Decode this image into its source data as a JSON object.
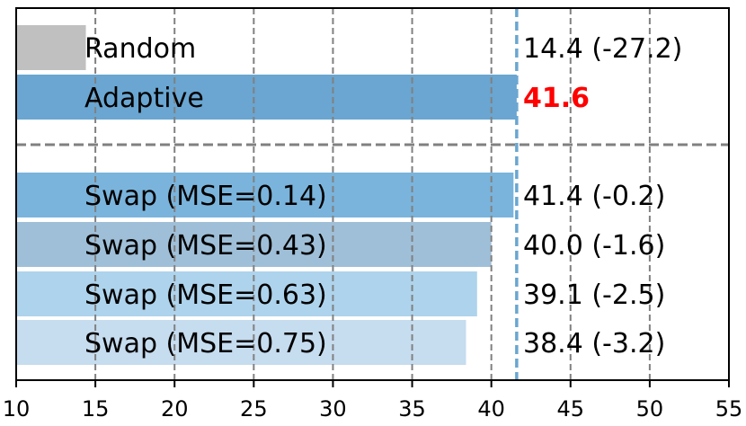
{
  "chart_data": {
    "type": "bar",
    "orientation": "horizontal",
    "categories": [
      "Random",
      "Adaptive",
      "Swap (MSE=0.14)",
      "Swap (MSE=0.43)",
      "Swap (MSE=0.63)",
      "Swap (MSE=0.75)"
    ],
    "values": [
      14.4,
      41.6,
      41.4,
      40.0,
      39.1,
      38.4
    ],
    "value_labels": [
      "14.4 (-27.2)",
      "41.6",
      "41.4 (-0.2)",
      "40.0 (-1.6)",
      "39.1 (-2.5)",
      "38.4 (-3.2)"
    ],
    "bar_colors": [
      "#c0c0c0",
      "#6aa6d1",
      "#7ab4dc",
      "#9fbfd8",
      "#aed3ec",
      "#c6dcef"
    ],
    "highlight_index": 1,
    "highlight_color": "#ff0000",
    "reference_line": {
      "value": 41.6,
      "color": "#6aa6d1",
      "style": "dashed"
    },
    "separator_after_index": 1,
    "xlim": [
      10,
      55
    ],
    "xticks": [
      10,
      15,
      20,
      25,
      30,
      35,
      40,
      45,
      50,
      55
    ],
    "xlabel": "",
    "ylabel": "",
    "title": "",
    "grid": "vertical dashed"
  }
}
